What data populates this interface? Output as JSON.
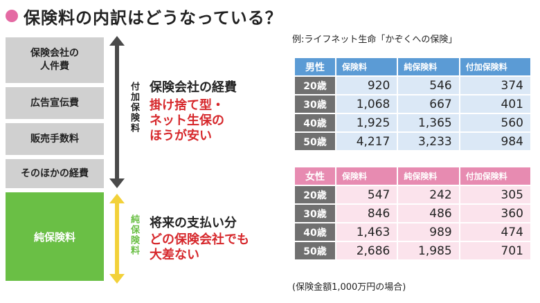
{
  "title": "保険料の内訳はどうなっている？",
  "left_boxes": {
    "costs": [
      "保険会社の\n人件費",
      "広告宣伝費",
      "販売手数料",
      "そのほかの経費"
    ],
    "net": "純保険料"
  },
  "arrows": {
    "loading_label": "付加保険料",
    "net_label": "純保険料"
  },
  "explanations": {
    "loading_heading": "保険会社の経費",
    "loading_detail_1": "掛け捨て型・",
    "loading_detail_2": "ネット生保の",
    "loading_detail_3": "ほうが安い",
    "net_heading": "将来の支払い分",
    "net_detail_1": "どの保険会社でも",
    "net_detail_2": "大差ない"
  },
  "example_caption": "例:ライフネット生命「かぞくへの保険」",
  "note": "(保険金額1,000万円の場合)",
  "colors": {
    "accent": "#e46aa3",
    "male": "#5b9bd5",
    "female": "#e78bb1",
    "net": "#6abf45",
    "arrow_dark": "#4a4a4a",
    "arrow_yellow": "#f2d13a",
    "highlight_red": "#d6272b"
  },
  "tables": {
    "columns": [
      "保険料",
      "純保険料",
      "付加保険料"
    ],
    "male": {
      "label": "男性",
      "rows": [
        {
          "age": "20歳",
          "premium": "920",
          "net": "546",
          "loading": "374"
        },
        {
          "age": "30歳",
          "premium": "1,068",
          "net": "667",
          "loading": "401"
        },
        {
          "age": "40歳",
          "premium": "1,925",
          "net": "1,365",
          "loading": "560"
        },
        {
          "age": "50歳",
          "premium": "4,217",
          "net": "3,233",
          "loading": "984"
        }
      ]
    },
    "female": {
      "label": "女性",
      "rows": [
        {
          "age": "20歳",
          "premium": "547",
          "net": "242",
          "loading": "305"
        },
        {
          "age": "30歳",
          "premium": "846",
          "net": "486",
          "loading": "360"
        },
        {
          "age": "40歳",
          "premium": "1,463",
          "net": "989",
          "loading": "474"
        },
        {
          "age": "50歳",
          "premium": "2,686",
          "net": "1,985",
          "loading": "701"
        }
      ]
    }
  }
}
